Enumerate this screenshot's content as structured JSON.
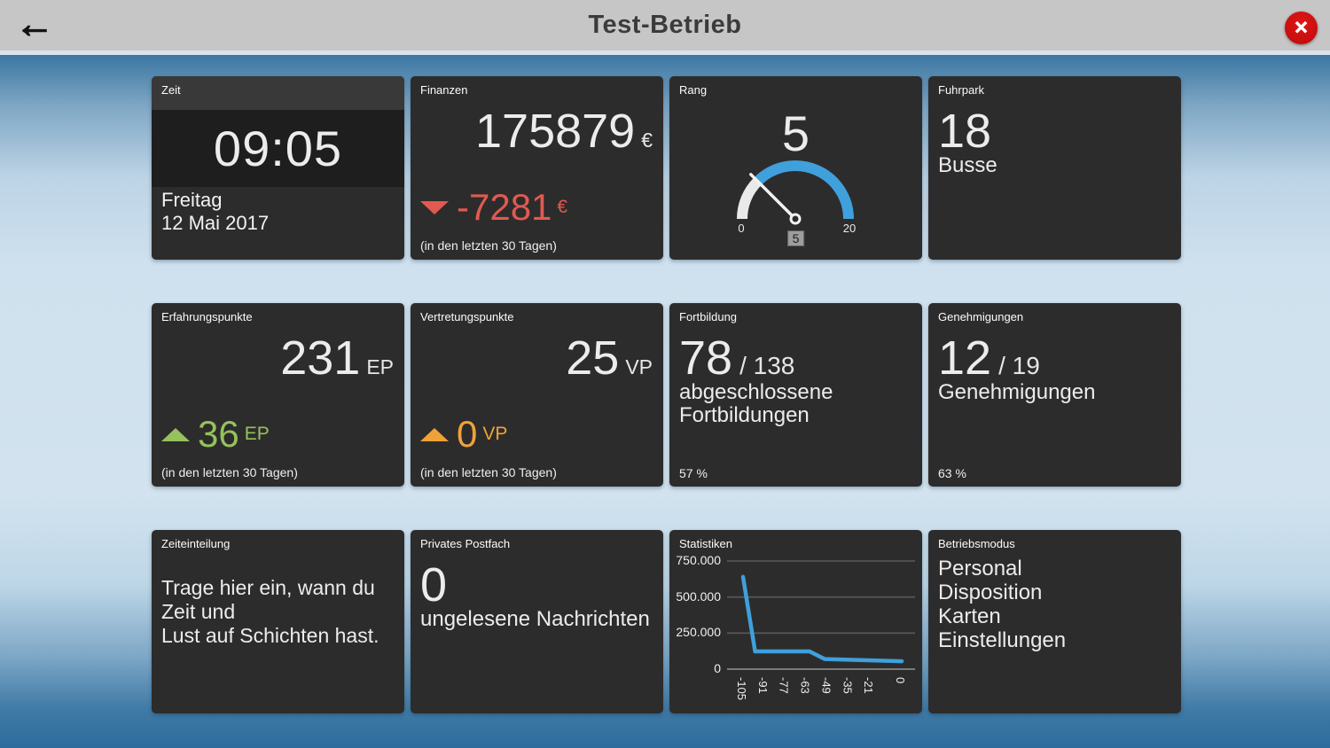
{
  "header": {
    "title": "Test-Betrieb"
  },
  "icons": {
    "back_arrow": "←",
    "close": "✕"
  },
  "colors": {
    "tile_bg": "#2d2c2c",
    "accent_blue": "#3fa0dc",
    "negative_red": "#e05a52",
    "positive_green": "#95c25c",
    "neutral_orange": "#f0a23a",
    "topbar_gray": "#c6c6c6",
    "close_red": "#c50e0e"
  },
  "tiles": {
    "zeit": {
      "title": "Zeit",
      "time": "09:05",
      "day": "Freitag",
      "date": "12 Mai 2017"
    },
    "finanzen": {
      "title": "Finanzen",
      "value": "175879",
      "unit": "€",
      "delta": "-7281",
      "delta_unit": "€",
      "note": "(in den letzten 30 Tagen)"
    },
    "rang": {
      "title": "Rang",
      "value": 5,
      "min": 0,
      "max": 20
    },
    "fuhrpark": {
      "title": "Fuhrpark",
      "value": "18",
      "label": "Busse"
    },
    "erfahrungspunkte": {
      "title": "Erfahrungspunkte",
      "value": "231",
      "unit": "EP",
      "delta": "36",
      "delta_unit": "EP",
      "note": "(in den letzten 30 Tagen)"
    },
    "vertretungspunkte": {
      "title": "Vertretungspunkte",
      "value": "25",
      "unit": "VP",
      "delta": "0",
      "delta_unit": "VP",
      "note": "(in den letzten 30 Tagen)"
    },
    "fortbildung": {
      "title": "Fortbildung",
      "value": "78",
      "total": "/ 138",
      "label": "abgeschlossene Fortbildungen",
      "percent": "57 %"
    },
    "genehmigungen": {
      "title": "Genehmigungen",
      "value": "12",
      "total": "/ 19",
      "label": "Genehmigungen",
      "percent": "63 %"
    },
    "zeiteinteilung": {
      "title": "Zeiteinteilung",
      "text_line1": "Trage hier ein, wann du Zeit und",
      "text_line2": "Lust auf Schichten hast."
    },
    "postfach": {
      "title": "Privates Postfach",
      "value": "0",
      "label": "ungelesene Nachrichten"
    },
    "statistiken": {
      "title": "Statistiken"
    },
    "betriebsmodus": {
      "title": "Betriebsmodus",
      "items": [
        "Personal",
        "Disposition",
        "Karten",
        "Einstellungen"
      ]
    }
  },
  "chart_data": {
    "type": "line",
    "title": "Statistiken",
    "series": [
      {
        "name": "Statistiken",
        "points": [
          [
            -105,
            640000
          ],
          [
            -97,
            123000
          ],
          [
            -61,
            123000
          ],
          [
            -51,
            70000
          ],
          [
            0,
            55000
          ]
        ]
      }
    ],
    "xticks": [
      -105,
      -91,
      -77,
      -63,
      -49,
      -35,
      -21,
      0
    ],
    "xticklabels": [
      "-105",
      "-91",
      "-77",
      "-63",
      "-49",
      "-35",
      "-21",
      "0"
    ],
    "yticks": [
      0,
      250000,
      500000,
      750000
    ],
    "yticklabels": [
      "0",
      "250.000",
      "500.000",
      "750.000"
    ],
    "xlim": [
      -112,
      2
    ],
    "ylim": [
      0,
      770000
    ],
    "grid": true,
    "legend": false,
    "line_color": "#3fa0dc"
  }
}
